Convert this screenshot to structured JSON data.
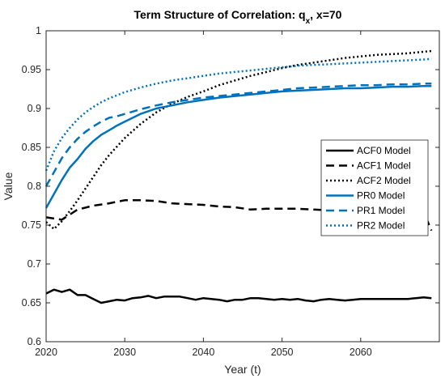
{
  "chart_data": {
    "type": "line",
    "title": "Term Structure of Correlation: q",
    "title_sub": "x",
    "title_suffix": ", x=70",
    "xlabel": "Year (t)",
    "ylabel": "Value",
    "xlim": [
      2020,
      2070
    ],
    "ylim": [
      0.6,
      1.0
    ],
    "xticks": [
      2020,
      2030,
      2040,
      2050,
      2060
    ],
    "yticks": [
      0.6,
      0.65,
      0.7,
      0.75,
      0.8,
      0.85,
      0.9,
      0.95,
      1
    ],
    "ytick_labels": [
      "0.6",
      "0.65",
      "0.7",
      "0.75",
      "0.8",
      "0.85",
      "0.9",
      "0.95",
      "1"
    ],
    "grid": false,
    "legend_position": "right",
    "series": [
      {
        "name": "ACF0 Model",
        "color": "#000000",
        "dash": "solid",
        "x": [
          2020,
          2021,
          2022,
          2023,
          2024,
          2025,
          2026,
          2027,
          2028,
          2029,
          2030,
          2031,
          2032,
          2033,
          2034,
          2035,
          2036,
          2037,
          2038,
          2039,
          2040,
          2041,
          2042,
          2043,
          2044,
          2045,
          2046,
          2047,
          2048,
          2049,
          2050,
          2051,
          2052,
          2053,
          2054,
          2055,
          2056,
          2057,
          2058,
          2059,
          2060,
          2061,
          2062,
          2063,
          2064,
          2065,
          2066,
          2067,
          2068,
          2069
        ],
        "y": [
          0.662,
          0.667,
          0.664,
          0.667,
          0.66,
          0.66,
          0.655,
          0.65,
          0.652,
          0.654,
          0.653,
          0.656,
          0.657,
          0.659,
          0.656,
          0.658,
          0.658,
          0.658,
          0.656,
          0.654,
          0.656,
          0.655,
          0.654,
          0.652,
          0.654,
          0.654,
          0.656,
          0.656,
          0.655,
          0.654,
          0.655,
          0.654,
          0.655,
          0.653,
          0.652,
          0.654,
          0.655,
          0.654,
          0.653,
          0.654,
          0.655,
          0.655,
          0.655,
          0.655,
          0.655,
          0.655,
          0.655,
          0.656,
          0.657,
          0.656
        ]
      },
      {
        "name": "ACF1 Model",
        "color": "#000000",
        "dash": "dashed",
        "x": [
          2020,
          2022,
          2024,
          2026,
          2028,
          2030,
          2032,
          2034,
          2036,
          2038,
          2040,
          2042,
          2044,
          2046,
          2048,
          2050,
          2052,
          2054,
          2056,
          2058,
          2060,
          2062,
          2064,
          2066,
          2068,
          2069
        ],
        "y": [
          0.76,
          0.757,
          0.77,
          0.775,
          0.778,
          0.782,
          0.782,
          0.781,
          0.778,
          0.777,
          0.776,
          0.774,
          0.773,
          0.77,
          0.771,
          0.771,
          0.771,
          0.77,
          0.769,
          0.769,
          0.769,
          0.768,
          0.768,
          0.767,
          0.767,
          0.743
        ]
      },
      {
        "name": "ACF2 Model",
        "color": "#000000",
        "dash": "dotted",
        "x": [
          2020,
          2021,
          2022,
          2023,
          2024,
          2025,
          2026,
          2027,
          2028,
          2030,
          2032,
          2034,
          2036,
          2038,
          2040,
          2042,
          2044,
          2046,
          2048,
          2050,
          2052,
          2054,
          2056,
          2058,
          2060,
          2062,
          2064,
          2066,
          2068,
          2069
        ],
        "y": [
          0.754,
          0.745,
          0.755,
          0.768,
          0.782,
          0.797,
          0.812,
          0.827,
          0.84,
          0.862,
          0.88,
          0.895,
          0.906,
          0.915,
          0.922,
          0.93,
          0.936,
          0.942,
          0.947,
          0.952,
          0.956,
          0.959,
          0.962,
          0.965,
          0.967,
          0.969,
          0.97,
          0.971,
          0.973,
          0.974
        ]
      },
      {
        "name": "PR0 Model",
        "color": "#0072BD",
        "dash": "solid",
        "x": [
          2020,
          2021,
          2022,
          2023,
          2024,
          2025,
          2026,
          2027,
          2028,
          2029,
          2030,
          2032,
          2034,
          2036,
          2038,
          2040,
          2042,
          2044,
          2046,
          2048,
          2050,
          2052,
          2054,
          2056,
          2058,
          2060,
          2062,
          2064,
          2066,
          2068,
          2069
        ],
        "y": [
          0.772,
          0.79,
          0.808,
          0.824,
          0.835,
          0.848,
          0.858,
          0.866,
          0.872,
          0.878,
          0.883,
          0.893,
          0.9,
          0.904,
          0.908,
          0.911,
          0.914,
          0.916,
          0.918,
          0.92,
          0.922,
          0.923,
          0.924,
          0.925,
          0.926,
          0.926,
          0.927,
          0.928,
          0.928,
          0.929,
          0.929
        ]
      },
      {
        "name": "PR1 Model",
        "color": "#0072BD",
        "dash": "dashed",
        "x": [
          2020,
          2021,
          2022,
          2023,
          2024,
          2025,
          2026,
          2027,
          2028,
          2029,
          2030,
          2032,
          2034,
          2036,
          2038,
          2040,
          2042,
          2044,
          2046,
          2048,
          2050,
          2052,
          2054,
          2056,
          2058,
          2060,
          2062,
          2064,
          2066,
          2068,
          2069
        ],
        "y": [
          0.8,
          0.818,
          0.836,
          0.85,
          0.861,
          0.87,
          0.877,
          0.883,
          0.888,
          0.89,
          0.893,
          0.899,
          0.904,
          0.908,
          0.911,
          0.914,
          0.916,
          0.918,
          0.92,
          0.922,
          0.924,
          0.926,
          0.927,
          0.928,
          0.929,
          0.93,
          0.93,
          0.931,
          0.931,
          0.932,
          0.932
        ]
      },
      {
        "name": "PR2 Model",
        "color": "#0072BD",
        "dash": "dotted",
        "x": [
          2020,
          2021,
          2022,
          2023,
          2024,
          2025,
          2026,
          2027,
          2028,
          2029,
          2030,
          2032,
          2034,
          2036,
          2038,
          2040,
          2042,
          2044,
          2046,
          2048,
          2050,
          2052,
          2054,
          2056,
          2058,
          2060,
          2062,
          2064,
          2066,
          2068,
          2069
        ],
        "y": [
          0.82,
          0.845,
          0.862,
          0.875,
          0.886,
          0.895,
          0.902,
          0.908,
          0.913,
          0.917,
          0.921,
          0.927,
          0.932,
          0.936,
          0.939,
          0.942,
          0.945,
          0.947,
          0.949,
          0.951,
          0.953,
          0.955,
          0.956,
          0.957,
          0.958,
          0.959,
          0.96,
          0.961,
          0.962,
          0.963,
          0.964
        ]
      }
    ]
  }
}
